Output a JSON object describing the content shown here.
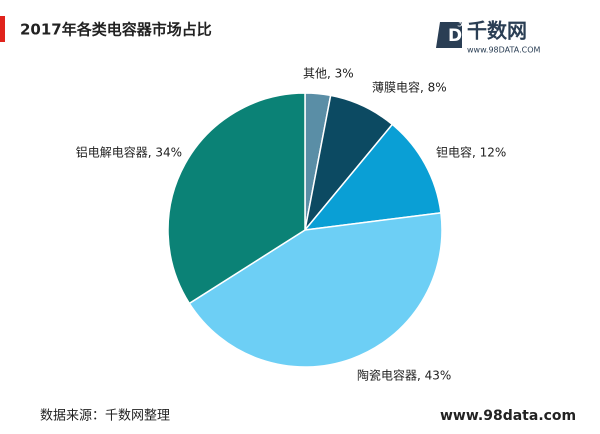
{
  "chart_data": {
    "type": "pie",
    "title": "2017年各类电容器市场占比",
    "labels": [
      "其他, 3%",
      "薄膜电容, 8%",
      "钽电容, 12%",
      "陶瓷电容器, 43%",
      "铝电解电容器, 34%"
    ],
    "values": [
      3,
      8,
      12,
      43,
      34
    ],
    "colors": [
      "#5a8ea6",
      "#0c4a62",
      "#0a9fd5",
      "#6dcff5",
      "#0b8276"
    ],
    "start_angle": 90,
    "direction": "clockwise"
  },
  "logo": {
    "icon": "D",
    "superscript": "3",
    "name": "千数网",
    "url": "www.98DATA.COM"
  },
  "footer": {
    "source": "数据来源：千数网整理",
    "site": "www.98data.com"
  }
}
